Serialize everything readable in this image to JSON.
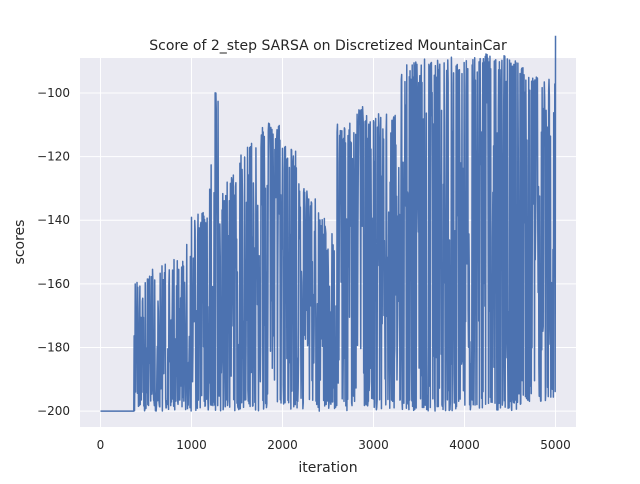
{
  "chart_data": {
    "type": "line",
    "title": "Score of 2_step SARSA on Discretized MountainCar",
    "xlabel": "iteration",
    "ylabel": "scores",
    "xlim": [
      -225,
      5225
    ],
    "ylim": [
      -205,
      -89
    ],
    "xticks": [
      0,
      1000,
      2000,
      3000,
      4000,
      5000
    ],
    "yticks": [
      -200,
      -180,
      -160,
      -140,
      -120,
      -100
    ],
    "grid": true,
    "legend": "none",
    "colors": {
      "series": "#4c72b0",
      "plot_bg": "#eaeaf2",
      "grid": "#ffffff"
    },
    "series": [
      {
        "segments": [
          {
            "x": [
              0,
              370
            ],
            "floor": -200,
            "hi": [
              -200,
              -200
            ]
          },
          {
            "x": [
              370,
              500
            ],
            "floor": -200,
            "hi": [
              -166,
              -159
            ]
          },
          {
            "x": [
              500,
              800
            ],
            "floor": -200,
            "hi": [
              -162,
              -158
            ]
          },
          {
            "x": [
              800,
              1000
            ],
            "floor": -200,
            "hi": [
              -158,
              -152
            ]
          },
          {
            "x": [
              1000,
              1200
            ],
            "floor": -200,
            "hi": [
              -145,
              -140
            ]
          },
          {
            "x": [
              1200,
              1260
            ],
            "floor": -200,
            "hi": [
              -128,
              -120
            ]
          },
          {
            "x": [
              1260,
              1300
            ],
            "floor": -200,
            "hi": [
              -105,
              -105
            ]
          },
          {
            "x": [
              1300,
              1500
            ],
            "floor": -200,
            "hi": [
              -135,
              -130
            ]
          },
          {
            "x": [
              1500,
              1800
            ],
            "floor": -200,
            "hi": [
              -125,
              -115
            ]
          },
          {
            "x": [
              1800,
              2000
            ],
            "floor": -200,
            "hi": [
              -115,
              -115
            ]
          },
          {
            "x": [
              2000,
              2200
            ],
            "floor": -200,
            "hi": [
              -120,
              -125
            ]
          },
          {
            "x": [
              2200,
              2400
            ],
            "floor": -200,
            "hi": [
              -135,
              -140
            ]
          },
          {
            "x": [
              2400,
              2600
            ],
            "floor": -200,
            "hi": [
              -145,
              -145
            ]
          },
          {
            "x": [
              2600,
              2800
            ],
            "floor": -200,
            "hi": [
              -115,
              -115
            ]
          },
          {
            "x": [
              2800,
              3000
            ],
            "floor": -200,
            "hi": [
              -110,
              -110
            ]
          },
          {
            "x": [
              3000,
              3250
            ],
            "floor": -200,
            "hi": [
              -112,
              -110
            ]
          },
          {
            "x": [
              3250,
              3700
            ],
            "floor": -200,
            "hi": [
              -96,
              -95
            ]
          },
          {
            "x": [
              3700,
              4200
            ],
            "floor": -200,
            "hi": [
              -95,
              -94
            ]
          },
          {
            "x": [
              4200,
              4650
            ],
            "floor": -200,
            "hi": [
              -93,
              -94
            ]
          },
          {
            "x": [
              4650,
              5000
            ],
            "floor": -197,
            "hi": [
              -100,
              -102
            ]
          }
        ]
      }
    ]
  }
}
